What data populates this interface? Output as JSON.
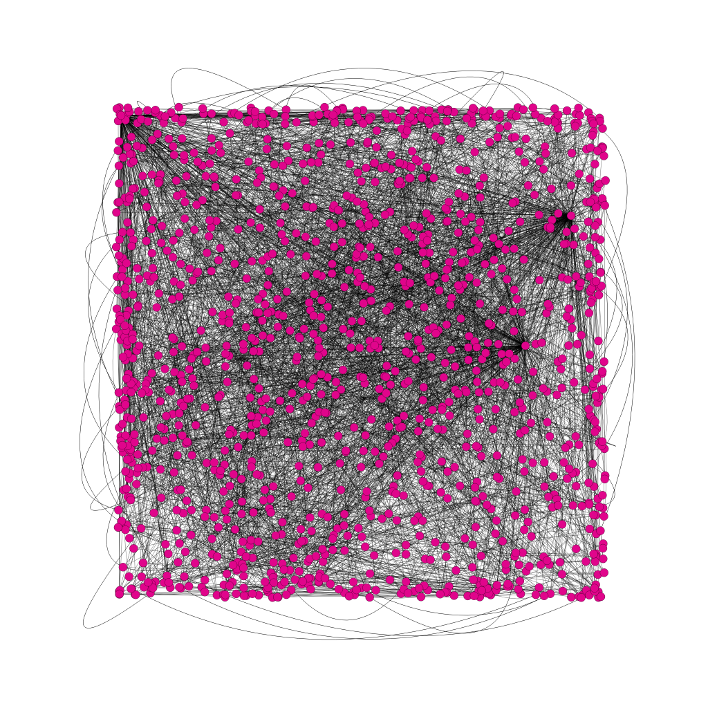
{
  "graph": {
    "node_color": "#e0058b",
    "edge_color": "#000000"
  }
}
